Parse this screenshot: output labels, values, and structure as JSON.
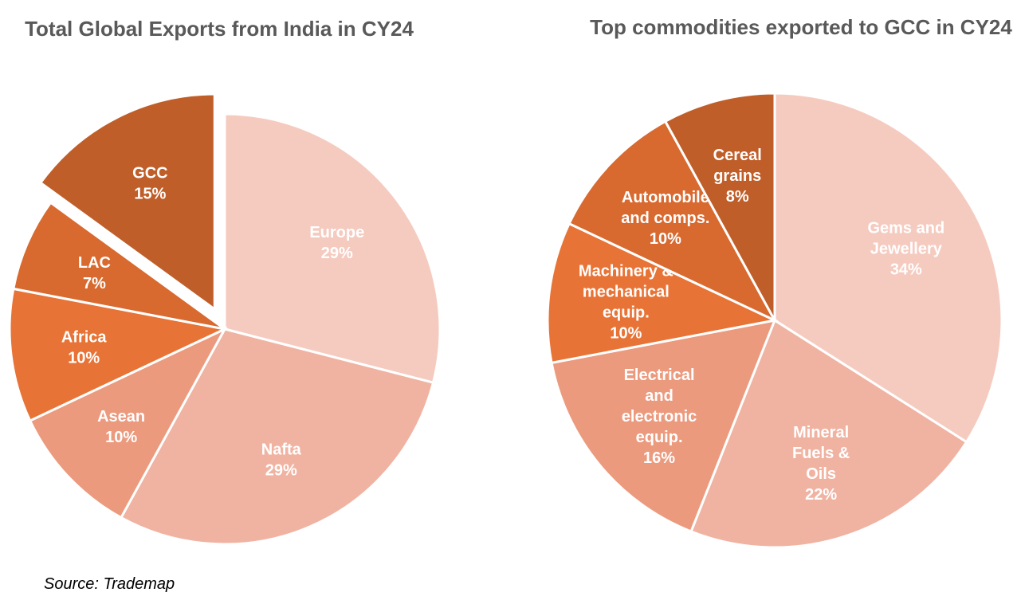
{
  "chart_data": [
    {
      "type": "pie",
      "title": "Total Global Exports from India in CY24",
      "start": "12 o'clock",
      "direction": "clockwise",
      "exploded": [
        "GCC"
      ],
      "slices": [
        {
          "label": "Europe",
          "value": 29,
          "display": "29%",
          "color": "#F5CBC0"
        },
        {
          "label": "Nafta",
          "value": 29,
          "display": "29%",
          "color": "#F0B3A2"
        },
        {
          "label": "Asean",
          "value": 10,
          "display": "10%",
          "color": "#EC9A7E"
        },
        {
          "label": "Africa",
          "value": 10,
          "display": "10%",
          "color": "#E87336"
        },
        {
          "label": "LAC",
          "value": 7,
          "display": "7%",
          "color": "#D8692F"
        },
        {
          "label": "GCC",
          "value": 15,
          "display": "15%",
          "color": "#C05E29"
        }
      ]
    },
    {
      "type": "pie",
      "title": "Top commodities exported to GCC in CY24",
      "start": "12 o'clock",
      "direction": "clockwise",
      "slices": [
        {
          "label": "Gems and Jewellery",
          "value": 34,
          "display": "34%",
          "color": "#F5CBC0"
        },
        {
          "label": "Mineral Fuels & Oils",
          "value": 22,
          "display": "22%",
          "color": "#F0B3A2"
        },
        {
          "label": "Electrical and electronic equip.",
          "value": 16,
          "display": "16%",
          "color": "#EC9A7E"
        },
        {
          "label": "Machinery & mechanical equip.",
          "value": 10,
          "display": "10%",
          "color": "#E87336"
        },
        {
          "label": "Automobile and comps.",
          "value": 10,
          "display": "10%",
          "color": "#D8692F"
        },
        {
          "label": "Cereal grains",
          "value": 8,
          "display": "8%",
          "color": "#C05E29"
        }
      ]
    }
  ],
  "source": "Source: Trademap"
}
